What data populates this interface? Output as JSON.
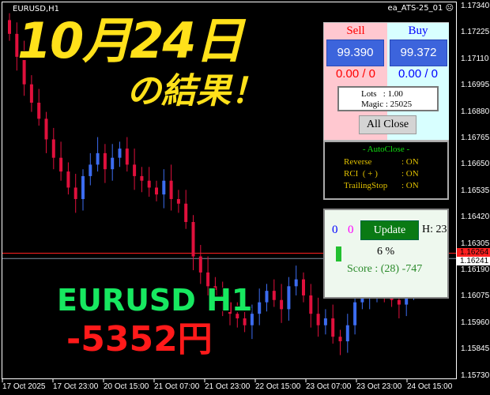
{
  "window": {
    "symbol": "EURUSD,H1",
    "ea_name": "ea_ATS-25_01",
    "ea_status_icon": "sad-face-icon"
  },
  "overlay": {
    "date": "10月24日",
    "result": "の結果！",
    "pair": "EURUSD H1",
    "profit": "-5352円"
  },
  "price_axis": [
    "1.17340",
    "1.17225",
    "1.17110",
    "1.16995",
    "1.16880",
    "1.16765",
    "1.16650",
    "1.16535",
    "1.16420",
    "1.16305",
    "1.16190",
    "1.16075",
    "1.15960",
    "1.15845",
    "1.15730"
  ],
  "price_labels": {
    "bid": "1.16241",
    "ask": "1.16264",
    "bid_color": "#ffffff",
    "ask_color": "#ff2020"
  },
  "time_axis": [
    "17 Oct 2025",
    "17 Oct 23:00",
    "20 Oct 15:00",
    "21 Oct 07:00",
    "21 Oct 23:00",
    "22 Oct 15:00",
    "23 Oct 07:00",
    "23 Oct 23:00",
    "24 Oct 15:00"
  ],
  "chart_data": {
    "type": "candlestick",
    "bull_color": "#3c6cf0",
    "bear_color": "#e0103c",
    "closes": [
      1.1722,
      1.1712,
      1.17,
      1.1692,
      1.1685,
      1.1676,
      1.1668,
      1.1662,
      1.1655,
      1.165,
      1.166,
      1.1665,
      1.167,
      1.1663,
      1.1668,
      1.1672,
      1.1665,
      1.166,
      1.1658,
      1.1655,
      1.1652,
      1.1658,
      1.165,
      1.1648,
      1.164,
      1.1625,
      1.1618,
      1.1612,
      1.1608,
      1.1605,
      1.16,
      1.1598,
      1.1595,
      1.16,
      1.1605,
      1.161,
      1.1606,
      1.1602,
      1.1612,
      1.1615,
      1.1608,
      1.16,
      1.1595,
      1.1598,
      1.159,
      1.1588,
      1.1595,
      1.1605,
      1.1608,
      1.161,
      1.1612,
      1.1609,
      1.1606,
      1.1604,
      1.161,
      1.1615,
      1.162,
      1.1624,
      1.1626
    ]
  },
  "trade_panel": {
    "sell_label": "Sell",
    "buy_label": "Buy",
    "sell_price": "99.390",
    "buy_price": "99.372",
    "sell_pl": "0.00 / 0",
    "buy_pl": "0.00 / 0",
    "lots": "Lots   : 1.00",
    "magic": "Magic : 25025",
    "all_close": "All Close"
  },
  "autoclose": {
    "title": "- AutoClose -",
    "rows": [
      {
        "k": "Reverse",
        "v": ": ON"
      },
      {
        "k": "RCI  ( + )",
        "v": ": ON"
      },
      {
        "k": "TrailingStop",
        "v": ": ON"
      }
    ]
  },
  "status_panel": {
    "count_buy": "0",
    "count_sell": "0",
    "update": "Update",
    "hour": "H: 23",
    "progress_text": "6 %",
    "progress": 6,
    "score": "Score : (28) -747"
  }
}
